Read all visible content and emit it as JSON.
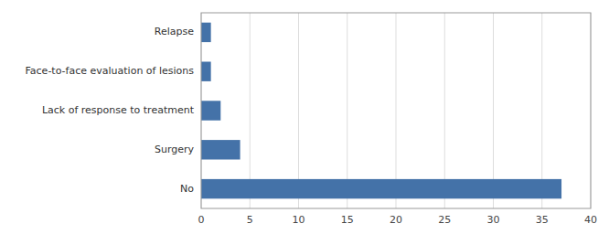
{
  "chart_data": {
    "type": "bar",
    "orientation": "horizontal",
    "categories": [
      "No",
      "Surgery",
      "Lack of response to treatment",
      "Face-to-face evaluation of lesions",
      "Relapse"
    ],
    "values": [
      37,
      4,
      2,
      1,
      1
    ],
    "color": "#4472a8",
    "xlim": [
      0,
      40
    ],
    "xticks": [
      0,
      5,
      10,
      15,
      20,
      25,
      30,
      35,
      40
    ],
    "grid": true
  }
}
